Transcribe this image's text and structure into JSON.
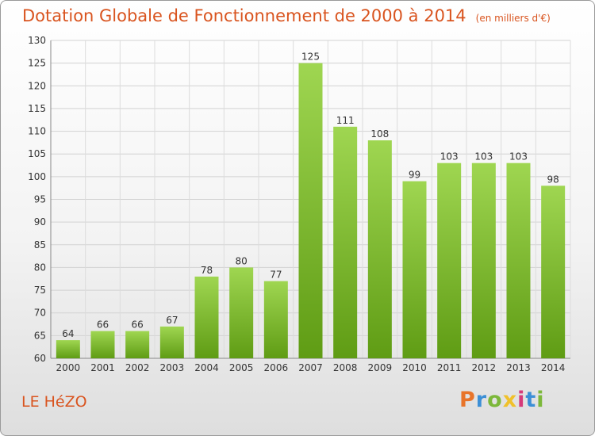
{
  "title": "Dotation Globale de Fonctionnement de 2000 à 2014",
  "subtitle": "(en milliers d'€)",
  "town": "LE HéZO",
  "logo": {
    "letters": [
      "P",
      "r",
      "o",
      "x",
      "i",
      "t",
      "i"
    ],
    "colors": [
      "#e8742a",
      "#3c8fd6",
      "#7cb83a",
      "#f0c12b",
      "#d63a7a",
      "#3c8fd6",
      "#7cb83a"
    ]
  },
  "colors": {
    "title": "#d9541f",
    "bar_light": "#9fd651",
    "bar_dark": "#5f9c14"
  },
  "chart_data": {
    "type": "bar",
    "categories": [
      "2000",
      "2001",
      "2002",
      "2003",
      "2004",
      "2005",
      "2006",
      "2007",
      "2008",
      "2009",
      "2010",
      "2011",
      "2012",
      "2013",
      "2014"
    ],
    "values": [
      64,
      66,
      66,
      67,
      78,
      80,
      77,
      125,
      111,
      108,
      99,
      103,
      103,
      103,
      98
    ],
    "ylim": [
      60,
      130
    ],
    "yticks": [
      60,
      65,
      70,
      75,
      80,
      85,
      90,
      95,
      100,
      105,
      110,
      115,
      120,
      125,
      130
    ],
    "grid": true,
    "legend": "none"
  }
}
